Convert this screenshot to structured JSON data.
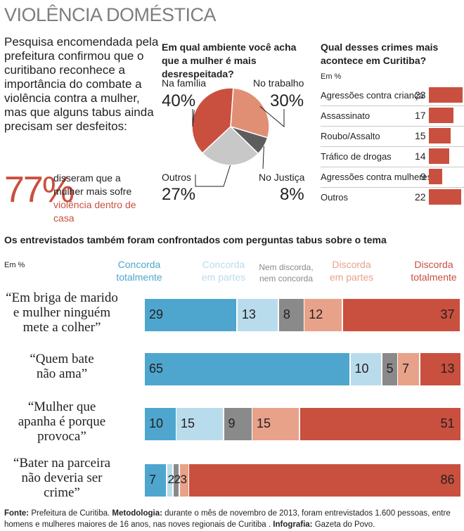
{
  "title": "VIOLÊNCIA DOMÉSTICA",
  "intro": "Pesquisa encomendada pela prefeitura confirmou que o curitibano reconhece a importância do combate a violência contra a mulher, mas que alguns tabus ainda precisam ser desfeitos:",
  "highlight": {
    "value": "77%",
    "text_pre": "disseram que a mulher mais sofre ",
    "text_emph": "violência dentro de casa"
  },
  "colors": {
    "concorda_total": "#4ea6ce",
    "concorda_partes": "#b9dcec",
    "nem": "#8a8a8a",
    "discorda_partes": "#e8a28a",
    "discorda_total": "#c9503f"
  },
  "chart_data": [
    {
      "type": "pie",
      "title": "Em qual ambiente você acha que a mulher é mais desrespeitada?",
      "categories": [
        "Na família",
        "No trabalho",
        "No Justiça",
        "Outros"
      ],
      "values": [
        40,
        30,
        8,
        27
      ],
      "labels": [
        "40%",
        "30%",
        "8%",
        "27%"
      ],
      "colors": [
        "#c9503f",
        "#e08f75",
        "#5d5d5d",
        "#c8c8c8"
      ]
    },
    {
      "type": "bar",
      "title": "Qual desses crimes mais acontece em Curitiba?",
      "unit_label": "Em %",
      "categories": [
        "Agressões contra criança",
        "Assassinato",
        "Roubo/Assalto",
        "Tráfico de drogas",
        "Agressões contra mulheres",
        "Outros"
      ],
      "values": [
        23,
        17,
        15,
        14,
        9,
        22
      ],
      "color": "#c9503f"
    },
    {
      "type": "bar",
      "orientation": "horizontal-stacked",
      "title": "Os entrevistados também foram confrontados com perguntas tabus sobre o tema",
      "unit_label": "Em %",
      "series_names": [
        "Concorda totalmente",
        "Concorda em partes",
        "Nem discorda, nem concorda",
        "Discorda em partes",
        "Discorda totalmente"
      ],
      "legend": [
        [
          "Concorda",
          "totalmente"
        ],
        [
          "Concorda",
          "em partes"
        ],
        [
          "Nem discorda,",
          "nem concorda"
        ],
        [
          "Discorda",
          "em partes"
        ],
        [
          "Discorda",
          "totalmente"
        ]
      ],
      "categories": [
        "“Em briga de marido e mulher ninguém mete a colher”",
        "“Quem bate não ama”",
        "“Mulher que apanha é porque provoca”",
        "“Bater na parceira não deveria ser crime”"
      ],
      "quote_lines": [
        [
          "“Em briga de marido",
          "e mulher ninguém",
          "mete a colher”"
        ],
        [
          "“Quem bate",
          "não ama”"
        ],
        [
          "“Mulher que",
          "apanha é porque",
          "provoca”"
        ],
        [
          "“Bater na parceira",
          "não deveria ser",
          "crime”"
        ]
      ],
      "rows": [
        [
          29,
          13,
          8,
          12,
          37
        ],
        [
          65,
          10,
          5,
          7,
          13
        ],
        [
          10,
          15,
          9,
          15,
          51
        ],
        [
          7,
          2,
          2,
          3,
          86
        ]
      ]
    }
  ],
  "footer": {
    "fonte_label": "Fonte:",
    "fonte": " Prefeitura de Curitiba. ",
    "metodologia_label": "Metodologia:",
    "metodologia": " durante o mês de novembro de 2013, foram entrevistados 1.600 pessoas, entre homens e mulheres maiores de 16 anos, nas noves regionais de Curitiba  . ",
    "infografia_label": "Infografia:",
    "infografia": " Gazeta do Povo."
  }
}
